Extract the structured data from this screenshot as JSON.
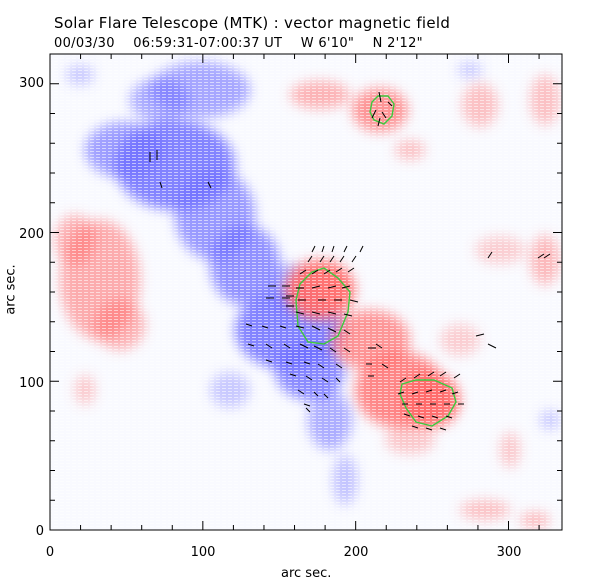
{
  "title": "Solar Flare Telescope (MTK) : vector magnetic field",
  "subtitle": {
    "date": "00/03/30",
    "time_range": "06:59:31-07:00:37 UT",
    "longitude": "W 6'10\"",
    "latitude": "N 2'12\""
  },
  "axes": {
    "xlabel": "arc sec.",
    "ylabel": "arc sec.",
    "x_ticks": [
      "0",
      "100",
      "200",
      "300"
    ],
    "y_ticks": [
      "0",
      "100",
      "200",
      "300"
    ],
    "xlim": [
      0,
      335
    ],
    "ylim": [
      0,
      320
    ]
  },
  "colors": {
    "positive_polarity": "#ff5a5a",
    "negative_polarity": "#5a5aff",
    "contour": "#3ec83e",
    "vectors": "#000000"
  }
}
